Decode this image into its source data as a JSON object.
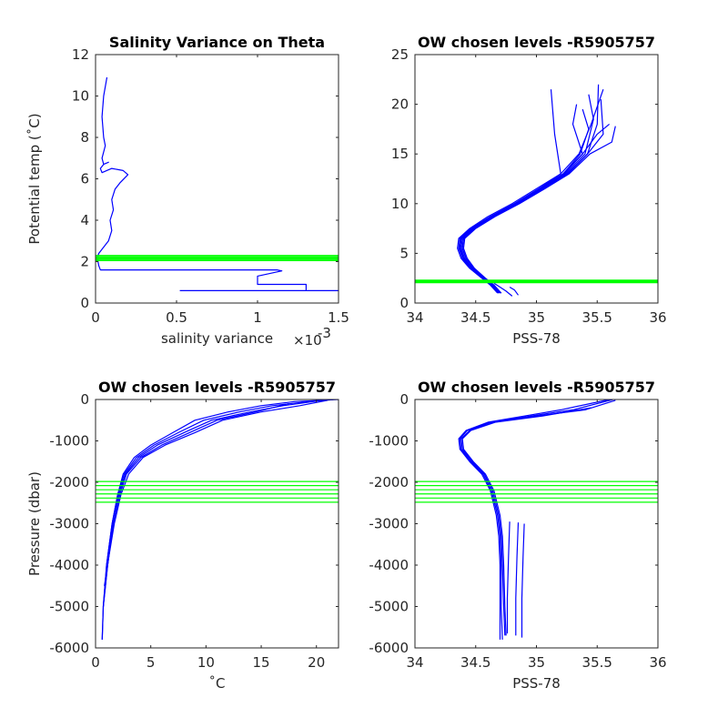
{
  "colors": {
    "profile": "#0000ff",
    "level": "#00ff00",
    "axis": "#262626"
  },
  "chart_data": [
    {
      "id": "p1",
      "type": "line",
      "title": "Salinity Variance on Theta",
      "xlabel": "salinity variance",
      "x_exponent_label": "×10",
      "x_exponent_sup": "-3",
      "ylabel": "Potential temp (˚C)",
      "xlim": [
        0,
        0.0015
      ],
      "ylim": [
        0,
        12
      ],
      "xticks": [
        0,
        0.0005,
        0.001,
        0.0015
      ],
      "xticklabels": [
        "0",
        "0.5",
        "1",
        "1.5"
      ],
      "yticks": [
        0,
        2,
        4,
        6,
        8,
        10,
        12
      ],
      "yticklabels": [
        "0",
        "2",
        "4",
        "6",
        "8",
        "10",
        "12"
      ],
      "series": [
        {
          "x": [
            7e-05,
            5e-05,
            4e-05,
            5e-05,
            6e-05,
            4e-05,
            5e-05,
            8e-05,
            5e-05,
            3e-05,
            4e-05,
            0.0001,
            0.00017,
            0.0002,
            0.00015,
            0.00012,
            0.0001,
            0.00011,
            9e-05,
            0.0001,
            8e-05,
            4e-05,
            2e-05,
            1e-05,
            2e-05,
            3e-05,
            0.00112,
            0.00115,
            0.001,
            0.001,
            0.0013,
            0.0013,
            0.0015,
            0.00052
          ],
          "y": [
            10.9,
            10.0,
            9.0,
            8.0,
            7.6,
            7.0,
            6.7,
            6.8,
            6.7,
            6.5,
            6.3,
            6.5,
            6.4,
            6.2,
            5.8,
            5.5,
            5.0,
            4.5,
            4.0,
            3.5,
            3.0,
            2.6,
            2.4,
            2.2,
            1.8,
            1.6,
            1.6,
            1.55,
            1.3,
            0.9,
            0.9,
            0.6,
            0.6,
            0.6
          ]
        }
      ],
      "hlines": [
        2.05,
        2.1,
        2.15,
        2.2,
        2.25,
        2.3
      ]
    },
    {
      "id": "p2",
      "type": "line",
      "title": "OW chosen levels -R5905757",
      "xlabel": "PSS-78",
      "ylabel": "",
      "xlim": [
        34,
        36
      ],
      "ylim": [
        0,
        25
      ],
      "xticks": [
        34,
        34.5,
        35,
        35.5,
        36
      ],
      "xticklabels": [
        "34",
        "34.5",
        "35",
        "35.5",
        "36"
      ],
      "yticks": [
        0,
        5,
        10,
        15,
        20,
        25
      ],
      "yticklabels": [
        "0",
        "5",
        "10",
        "15",
        "20",
        "25"
      ],
      "series": [
        {
          "x": [
            34.68,
            34.62,
            34.55,
            34.45,
            34.38,
            34.35,
            34.36,
            34.45,
            34.6,
            34.8,
            35.0,
            35.2,
            35.35,
            35.45,
            35.55
          ],
          "y": [
            1.0,
            1.8,
            2.5,
            3.5,
            4.5,
            5.5,
            6.5,
            7.5,
            8.7,
            10.0,
            11.5,
            13.0,
            15.0,
            18.0,
            21.5
          ]
        },
        {
          "x": [
            34.69,
            34.63,
            34.56,
            34.46,
            34.39,
            34.36,
            34.37,
            34.46,
            34.62,
            34.82,
            35.02,
            35.22,
            35.38,
            35.5,
            35.6
          ],
          "y": [
            1.0,
            1.8,
            2.5,
            3.5,
            4.5,
            5.5,
            6.5,
            7.5,
            8.7,
            10.0,
            11.5,
            13.0,
            15.0,
            17.0,
            18.0
          ]
        },
        {
          "x": [
            34.7,
            34.64,
            34.57,
            34.47,
            34.4,
            34.37,
            34.38,
            34.47,
            34.63,
            34.83,
            35.04,
            35.24,
            35.4,
            35.47,
            35.43
          ],
          "y": [
            1.0,
            1.8,
            2.5,
            3.5,
            4.5,
            5.5,
            6.5,
            7.5,
            8.7,
            10.0,
            11.5,
            13.0,
            15.0,
            18.5,
            21.0
          ]
        },
        {
          "x": [
            34.7,
            34.64,
            34.57,
            34.48,
            34.42,
            34.39,
            34.4,
            34.49,
            34.64,
            34.84,
            35.05,
            35.25,
            35.42,
            35.55,
            35.53
          ],
          "y": [
            1.0,
            1.8,
            2.5,
            3.5,
            4.5,
            5.5,
            6.5,
            7.5,
            8.7,
            10.0,
            11.5,
            13.0,
            15.0,
            17.0,
            20.5
          ]
        },
        {
          "x": [
            34.71,
            34.65,
            34.58,
            34.49,
            34.43,
            34.4,
            34.41,
            34.5,
            34.66,
            34.86,
            35.07,
            35.27,
            35.44,
            35.62,
            35.65
          ],
          "y": [
            1.0,
            1.8,
            2.5,
            3.5,
            4.5,
            5.5,
            6.5,
            7.5,
            8.7,
            10.0,
            11.5,
            13.0,
            15.0,
            16.2,
            17.8
          ]
        },
        {
          "x": [
            34.69,
            34.63,
            34.56,
            34.47,
            34.41,
            34.38,
            34.39,
            34.48,
            34.63,
            34.83,
            35.04,
            35.23,
            35.38,
            35.3,
            35.33
          ],
          "y": [
            1.0,
            1.8,
            2.5,
            3.5,
            4.5,
            5.5,
            6.5,
            7.5,
            8.7,
            10.0,
            11.5,
            13.0,
            15.0,
            18.0,
            20.0
          ]
        },
        {
          "x": [
            34.7,
            34.64,
            34.57,
            34.47,
            34.4,
            34.37,
            34.38,
            34.47,
            34.63,
            34.82,
            35.03,
            35.22,
            35.36,
            35.43,
            35.38
          ],
          "y": [
            1.0,
            1.8,
            2.5,
            3.5,
            4.5,
            5.5,
            6.5,
            7.5,
            8.7,
            10.0,
            11.5,
            13.0,
            15.0,
            17.5,
            19.5
          ]
        },
        {
          "x": [
            34.7,
            34.64,
            34.57,
            34.47,
            34.4,
            34.37,
            34.38,
            34.47,
            34.62,
            34.82,
            35.02,
            35.2,
            35.15,
            35.12
          ],
          "y": [
            1.0,
            1.8,
            2.5,
            3.5,
            4.5,
            5.5,
            6.5,
            7.5,
            8.7,
            10.0,
            11.5,
            13.0,
            17.0,
            21.5
          ]
        },
        {
          "x": [
            34.71,
            34.65,
            34.58,
            34.48,
            34.42,
            34.39,
            34.4,
            34.49,
            34.65,
            34.85,
            35.06,
            35.26,
            35.42,
            35.5,
            35.51
          ],
          "y": [
            1.0,
            1.8,
            2.5,
            3.5,
            4.5,
            5.5,
            6.5,
            7.5,
            8.7,
            10.0,
            11.5,
            13.0,
            15.0,
            18.0,
            22.0
          ]
        },
        {
          "x": [
            34.8,
            34.75,
            34.7,
            34.65
          ],
          "y": [
            0.7,
            1.2,
            1.6,
            2.0
          ]
        },
        {
          "x": [
            34.85,
            34.82,
            34.78
          ],
          "y": [
            0.8,
            1.3,
            1.6
          ]
        }
      ],
      "hlines": [
        2.05,
        2.1,
        2.15,
        2.2,
        2.25,
        2.3
      ]
    },
    {
      "id": "p3",
      "type": "line",
      "title": "OW chosen levels -R5905757",
      "xlabel": "˚C",
      "ylabel": "Pressure (dbar)",
      "xlim": [
        0,
        22
      ],
      "ylim": [
        -6000,
        0
      ],
      "xticks": [
        0,
        5,
        10,
        15,
        20
      ],
      "xticklabels": [
        "0",
        "5",
        "10",
        "15",
        "20"
      ],
      "yticks": [
        -6000,
        -5000,
        -4000,
        -3000,
        -2000,
        -1000,
        0
      ],
      "yticklabels": [
        "-6000",
        "-5000",
        "-4000",
        "-3000",
        "-2000",
        "-1000",
        "0"
      ],
      "series": [
        {
          "x": [
            0.6,
            0.7,
            1.0,
            1.5,
            2.0,
            2.5,
            3.5,
            5.0,
            7.0,
            9.0,
            12.0,
            15.0,
            18.0,
            22.0
          ],
          "y": [
            -5800,
            -5000,
            -4000,
            -3000,
            -2300,
            -1800,
            -1400,
            -1100,
            -800,
            -500,
            -300,
            -150,
            -50,
            0
          ]
        },
        {
          "x": [
            0.6,
            0.7,
            1.0,
            1.5,
            2.0,
            2.6,
            3.7,
            5.3,
            7.5,
            9.8,
            13.0,
            16.0,
            19.0,
            21.5
          ],
          "y": [
            -5800,
            -5000,
            -4000,
            -3000,
            -2300,
            -1800,
            -1400,
            -1100,
            -800,
            -500,
            -300,
            -150,
            -60,
            -5
          ]
        },
        {
          "x": [
            0.7,
            1.1,
            1.6,
            2.1,
            2.7,
            3.9,
            5.6,
            8.0,
            10.5,
            14.0,
            17.0,
            20.0
          ],
          "y": [
            -5000,
            -4000,
            -3000,
            -2300,
            -1800,
            -1400,
            -1100,
            -800,
            -500,
            -300,
            -150,
            -40
          ]
        },
        {
          "x": [
            0.7,
            1.1,
            1.6,
            2.2,
            2.8,
            4.1,
            6.0,
            8.5,
            11.0,
            14.5,
            17.5
          ],
          "y": [
            -5000,
            -4000,
            -3000,
            -2300,
            -1800,
            -1400,
            -1100,
            -800,
            -500,
            -300,
            -100
          ]
        },
        {
          "x": [
            0.8,
            1.2,
            1.7,
            2.3,
            3.0,
            4.3,
            6.3,
            9.0,
            11.5,
            15.0,
            18.5,
            21.0
          ],
          "y": [
            -4500,
            -3800,
            -3000,
            -2300,
            -1800,
            -1400,
            -1100,
            -800,
            -500,
            -300,
            -150,
            -20
          ]
        }
      ],
      "hlines": [
        -1980,
        -2080,
        -2180,
        -2280,
        -2380,
        -2480
      ]
    },
    {
      "id": "p4",
      "type": "line",
      "title": "OW chosen levels -R5905757",
      "xlabel": "PSS-78",
      "ylabel": "",
      "xlim": [
        34,
        36
      ],
      "ylim": [
        -6000,
        0
      ],
      "xticks": [
        34,
        34.5,
        35,
        35.5,
        36
      ],
      "xticklabels": [
        "34",
        "34.5",
        "35",
        "35.5",
        "36"
      ],
      "yticks": [
        -6000,
        -5000,
        -4000,
        -3000,
        -2000,
        -1000,
        0
      ],
      "yticklabels": [
        "-6000",
        "-5000",
        "-4000",
        "-3000",
        "-2000",
        "-1000",
        "0"
      ],
      "series": [
        {
          "x": [
            34.7,
            34.7,
            34.7,
            34.69,
            34.67,
            34.62,
            34.55,
            34.45,
            34.37,
            34.36,
            34.42,
            34.6,
            34.9,
            35.2,
            35.6
          ],
          "y": [
            -5800,
            -5000,
            -4000,
            -3300,
            -2800,
            -2200,
            -1800,
            -1500,
            -1200,
            -950,
            -750,
            -550,
            -400,
            -250,
            0
          ]
        },
        {
          "x": [
            34.72,
            34.71,
            34.71,
            34.7,
            34.68,
            34.63,
            34.56,
            34.46,
            34.38,
            34.37,
            34.43,
            34.62,
            34.95,
            35.3,
            35.63
          ],
          "y": [
            -5800,
            -5000,
            -4000,
            -3300,
            -2800,
            -2200,
            -1800,
            -1500,
            -1200,
            -950,
            -750,
            -550,
            -400,
            -250,
            0
          ]
        },
        {
          "x": [
            34.74,
            34.73,
            34.72,
            34.71,
            34.69,
            34.64,
            34.57,
            34.47,
            34.39,
            34.38,
            34.45,
            34.65,
            35.0,
            35.4,
            35.65
          ],
          "y": [
            -5700,
            -5000,
            -4000,
            -3300,
            -2800,
            -2200,
            -1800,
            -1500,
            -1200,
            -950,
            -750,
            -550,
            -400,
            -250,
            -20
          ]
        },
        {
          "x": [
            34.75,
            34.74,
            34.73,
            34.72,
            34.7,
            34.65,
            34.58,
            34.48,
            34.4,
            34.39,
            34.46,
            34.66,
            35.05,
            35.45
          ],
          "y": [
            -5700,
            -5000,
            -4000,
            -3300,
            -2800,
            -2200,
            -1800,
            -1500,
            -1200,
            -950,
            -750,
            -550,
            -400,
            -200
          ]
        },
        {
          "x": [
            34.76,
            34.76,
            34.77,
            34.78
          ],
          "y": [
            -5650,
            -4800,
            -3800,
            -2950
          ]
        },
        {
          "x": [
            34.83,
            34.83,
            34.84,
            34.85
          ],
          "y": [
            -5700,
            -4800,
            -3800,
            -2970
          ]
        },
        {
          "x": [
            34.88,
            34.88,
            34.89,
            34.9
          ],
          "y": [
            -5750,
            -4800,
            -3800,
            -3000
          ]
        }
      ],
      "hlines": [
        -1980,
        -2080,
        -2180,
        -2280,
        -2380,
        -2480
      ]
    }
  ]
}
